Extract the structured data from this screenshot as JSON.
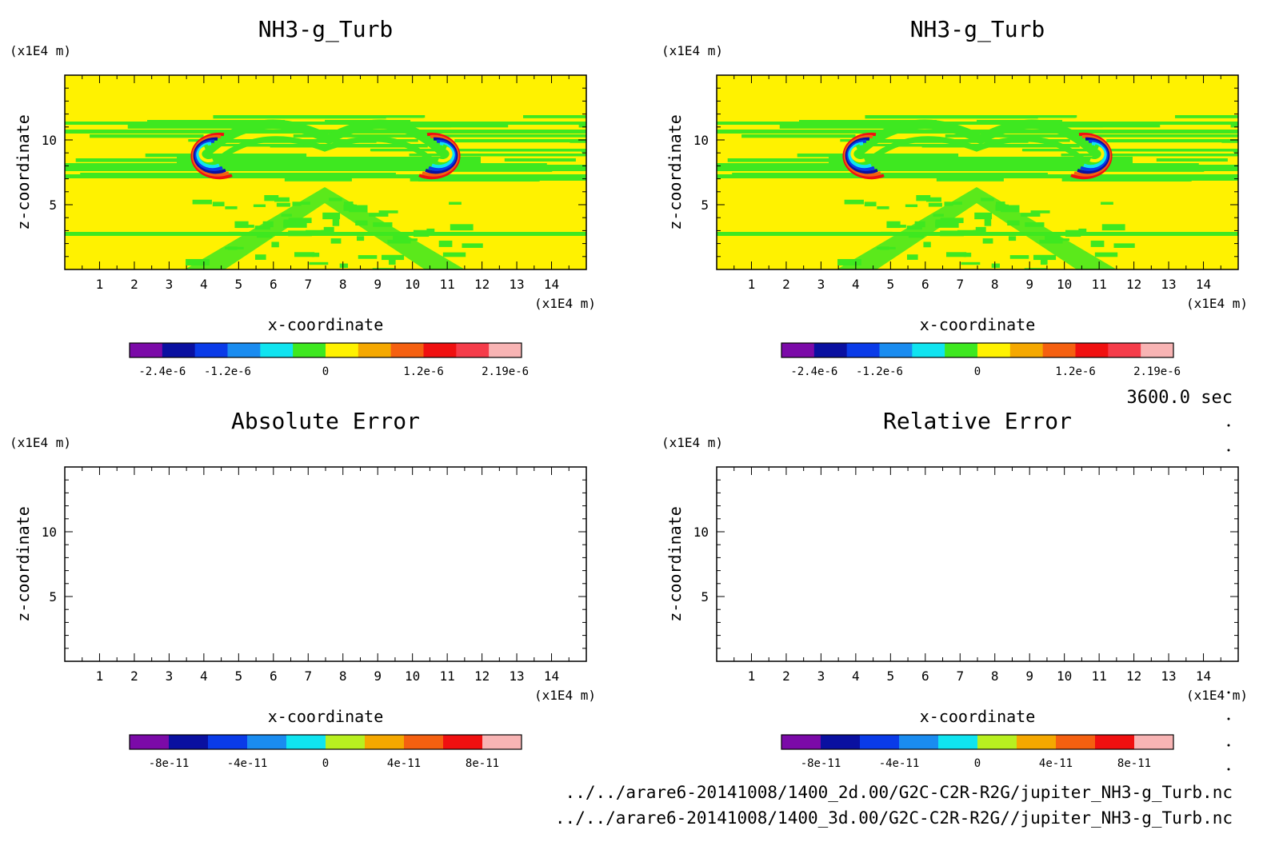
{
  "time_label": "3600.0 sec",
  "files": [
    "../../arare6-20141008/1400_2d.00/G2C-C2R-R2G/jupiter_NH3-g_Turb.nc",
    "../../arare6-20141008/1400_3d.00/G2C-C2R-R2G//jupiter_NH3-g_Turb.nc"
  ],
  "chart_data": [
    {
      "type": "heatmap",
      "title": "NH3-g_Turb",
      "xlabel": "x-coordinate",
      "ylabel": "z-coordinate",
      "x_unit": "(x1E4 m)",
      "y_unit": "(x1E4 m)",
      "xlim": [
        0,
        15
      ],
      "ylim": [
        0,
        15
      ],
      "xticks": [
        "1",
        "2",
        "3",
        "4",
        "5",
        "6",
        "7",
        "8",
        "9",
        "10",
        "11",
        "12",
        "13",
        "14"
      ],
      "yticks": [
        "5",
        "10"
      ],
      "colorbar": {
        "colors": [
          "#7b0aa8",
          "#0a10a0",
          "#0a3be8",
          "#1a8cf0",
          "#10e4f0",
          "#3ee820",
          "#fff200",
          "#f5a800",
          "#f56010",
          "#f01010",
          "#f53c4a",
          "#f8b4b4"
        ],
        "labels": [
          "-2.4e-6",
          "-1.2e-6",
          "0",
          "1.2e-6",
          "2.19e-6"
        ]
      }
    },
    {
      "type": "heatmap",
      "title": "NH3-g_Turb",
      "xlabel": "x-coordinate",
      "ylabel": "z-coordinate",
      "x_unit": "(x1E4 m)",
      "y_unit": "(x1E4 m)",
      "xlim": [
        0,
        15
      ],
      "ylim": [
        0,
        15
      ],
      "xticks": [
        "1",
        "2",
        "3",
        "4",
        "5",
        "6",
        "7",
        "8",
        "9",
        "10",
        "11",
        "12",
        "13",
        "14"
      ],
      "yticks": [
        "5",
        "10"
      ],
      "colorbar": {
        "colors": [
          "#7b0aa8",
          "#0a10a0",
          "#0a3be8",
          "#1a8cf0",
          "#10e4f0",
          "#3ee820",
          "#fff200",
          "#f5a800",
          "#f56010",
          "#f01010",
          "#f53c4a",
          "#f8b4b4"
        ],
        "labels": [
          "-2.4e-6",
          "-1.2e-6",
          "0",
          "1.2e-6",
          "2.19e-6"
        ]
      }
    },
    {
      "type": "heatmap",
      "title": "Absolute Error",
      "xlabel": "x-coordinate",
      "ylabel": "z-coordinate",
      "x_unit": "(x1E4 m)",
      "y_unit": "(x1E4 m)",
      "xlim": [
        0,
        15
      ],
      "ylim": [
        0,
        15
      ],
      "xticks": [
        "1",
        "2",
        "3",
        "4",
        "5",
        "6",
        "7",
        "8",
        "9",
        "10",
        "11",
        "12",
        "13",
        "14"
      ],
      "yticks": [
        "5",
        "10"
      ],
      "values": "empty",
      "colorbar": {
        "colors": [
          "#7b0aa8",
          "#0a10a0",
          "#0a3be8",
          "#1a8cf0",
          "#10e4f0",
          "#b8f020",
          "#f5a800",
          "#f56010",
          "#f01010",
          "#f8b4b4"
        ],
        "labels": [
          "-8e-11",
          "-4e-11",
          "0",
          "4e-11",
          "8e-11"
        ]
      }
    },
    {
      "type": "heatmap",
      "title": "Relative Error",
      "xlabel": "x-coordinate",
      "ylabel": "z-coordinate",
      "x_unit": "(x1E4 m)",
      "y_unit": "(x1E4 m)",
      "xlim": [
        0,
        15
      ],
      "ylim": [
        0,
        15
      ],
      "xticks": [
        "1",
        "2",
        "3",
        "4",
        "5",
        "6",
        "7",
        "8",
        "9",
        "10",
        "11",
        "12",
        "13",
        "14"
      ],
      "yticks": [
        "5",
        "10"
      ],
      "values": "empty",
      "colorbar": {
        "colors": [
          "#7b0aa8",
          "#0a10a0",
          "#0a3be8",
          "#1a8cf0",
          "#10e4f0",
          "#b8f020",
          "#f5a800",
          "#f56010",
          "#f01010",
          "#f8b4b4"
        ],
        "labels": [
          "-8e-11",
          "-4e-11",
          "0",
          "4e-11",
          "8e-11"
        ]
      }
    }
  ]
}
